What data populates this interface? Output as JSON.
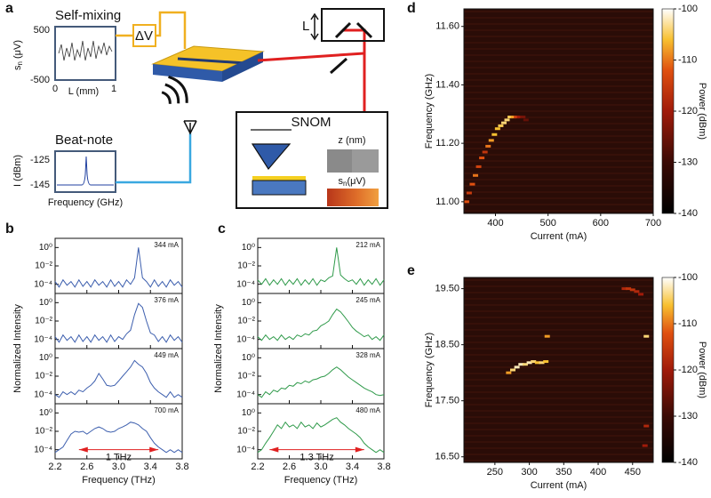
{
  "schematic": {
    "label": "a",
    "self_mixing": {
      "title": "Self-mixing",
      "ylabel": {
        "base": "s",
        "sub": "n",
        "rest": " (μV)"
      },
      "yticks": [
        "500",
        "-500"
      ],
      "xticks": [
        "0",
        "1"
      ],
      "xlabel": "L (mm)"
    },
    "bias": "ΔV",
    "mirror": "L",
    "snom": {
      "title": "SNOM",
      "topo": "z (nm)",
      "signal": {
        "base": "s",
        "sub": "n",
        "rest": "(μV)"
      }
    },
    "beat_note": {
      "title": "Beat-note",
      "ylabel": "I (dBm)",
      "yticks": [
        "-125",
        "-145"
      ],
      "xlabel": "Frequency (GHz)"
    }
  },
  "chart_data": [
    {
      "type": "spectra",
      "label": "b",
      "xlabel": "Frequency (THz)",
      "ylabel": "Normalized Intensity",
      "xlim": [
        2.2,
        3.8
      ],
      "xticks": [
        2.2,
        2.6,
        {
          "value": 3,
          "label": "3.0"
        },
        3.4,
        3.8
      ],
      "ylim": [
        1e-05,
        10
      ],
      "log_y": true,
      "yticks": [
        {
          "value": 1,
          "label": "10⁰"
        },
        {
          "value": 0.01,
          "label": "10⁻²"
        },
        {
          "value": 0.0001,
          "label": "10⁻⁴"
        }
      ],
      "color": "#3d5fae",
      "x": [
        2.2,
        2.25,
        2.3,
        2.35,
        2.4,
        2.45,
        2.5,
        2.55,
        2.6,
        2.65,
        2.7,
        2.75,
        2.8,
        2.85,
        2.9,
        2.95,
        3,
        3.05,
        3.1,
        3.15,
        3.2,
        3.25,
        3.3,
        3.35,
        3.4,
        3.45,
        3.5,
        3.55,
        3.6,
        3.65,
        3.7,
        3.75,
        3.8
      ],
      "series": [
        {
          "name": "344 mA",
          "values": [
            0.0002,
            5e-05,
            0.0003,
            8e-05,
            0.0002,
            5e-05,
            0.0003,
            6e-05,
            0.0002,
            5e-05,
            0.0003,
            8e-05,
            0.0002,
            5e-05,
            0.0003,
            6e-05,
            0.0002,
            5e-05,
            0.0003,
            0.0001,
            0.0005,
            1,
            0.0005,
            0.0002,
            5e-05,
            0.0003,
            6e-05,
            0.0002,
            5e-05,
            0.0003,
            8e-05,
            0.0002,
            5e-05
          ]
        },
        {
          "name": "376 mA",
          "values": [
            0.0002,
            5e-05,
            0.0003,
            8e-05,
            0.0002,
            5e-05,
            0.0003,
            6e-05,
            0.0002,
            5e-05,
            0.0003,
            8e-05,
            0.0002,
            5e-05,
            0.0003,
            6e-05,
            0.0002,
            0.0001,
            0.0004,
            0.001,
            0.05,
            0.8,
            0.3,
            0.01,
            0.0005,
            0.0003,
            6e-05,
            0.0002,
            5e-05,
            0.0003,
            8e-05,
            0.0002,
            5e-05
          ]
        },
        {
          "name": "449 mA",
          "values": [
            0.0001,
            5e-05,
            0.0002,
            0.0001,
            0.0002,
            0.0001,
            0.0003,
            0.0002,
            0.0005,
            0.001,
            0.003,
            0.02,
            0.005,
            0.001,
            0.0008,
            0.001,
            0.003,
            0.01,
            0.03,
            0.1,
            0.5,
            0.2,
            0.1,
            0.02,
            0.002,
            0.0005,
            0.0002,
            0.0001,
            5e-05,
            0.0002,
            5e-05,
            0.0001,
            5e-05
          ]
        },
        {
          "name": "700 mA",
          "values": [
            5e-05,
            0.0001,
            0.0002,
            0.001,
            0.005,
            0.01,
            0.008,
            0.01,
            0.005,
            0.01,
            0.02,
            0.03,
            0.02,
            0.01,
            0.008,
            0.01,
            0.02,
            0.03,
            0.05,
            0.1,
            0.08,
            0.05,
            0.02,
            0.01,
            0.002,
            0.0005,
            0.0002,
            0.0001,
            5e-05,
            0.0001,
            5e-05,
            0.0001,
            5e-05
          ]
        }
      ],
      "annotation": {
        "text": "1 THz",
        "span": [
          2.5,
          3.5
        ],
        "at": 0.0001
      }
    },
    {
      "type": "spectra",
      "label": "c",
      "xlabel": "Frequency (THz)",
      "ylabel": "Normalized Intensity",
      "xlim": [
        2.2,
        3.8
      ],
      "xticks": [
        2.2,
        2.6,
        {
          "value": 3,
          "label": "3.0"
        },
        3.4,
        3.8
      ],
      "ylim": [
        1e-05,
        10
      ],
      "log_y": true,
      "yticks": [
        {
          "value": 1,
          "label": "10⁰"
        },
        {
          "value": 0.01,
          "label": "10⁻²"
        },
        {
          "value": 0.0001,
          "label": "10⁻⁴"
        }
      ],
      "color": "#2f9a4a",
      "x": [
        2.2,
        2.25,
        2.3,
        2.35,
        2.4,
        2.45,
        2.5,
        2.55,
        2.6,
        2.65,
        2.7,
        2.75,
        2.8,
        2.85,
        2.9,
        2.95,
        3,
        3.05,
        3.1,
        3.15,
        3.2,
        3.25,
        3.3,
        3.35,
        3.4,
        3.45,
        3.5,
        3.55,
        3.6,
        3.65,
        3.7,
        3.75,
        3.8
      ],
      "series": [
        {
          "name": "212 mA",
          "values": [
            0.0003,
            0.0001,
            0.0004,
            8e-05,
            0.0003,
            0.0001,
            0.0004,
            8e-05,
            0.0003,
            0.0001,
            0.0004,
            8e-05,
            0.0003,
            0.0001,
            0.0004,
            8e-05,
            0.0003,
            0.0002,
            0.0005,
            0.0008,
            1,
            0.001,
            0.0004,
            0.0002,
            0.0003,
            0.0001,
            0.0004,
            8e-05,
            0.0003,
            0.0001,
            0.0004,
            8e-05,
            0.0003
          ]
        },
        {
          "name": "245 mA",
          "values": [
            0.0002,
            8e-05,
            0.0003,
            0.0001,
            0.0002,
            8e-05,
            0.0003,
            0.0001,
            0.0002,
            0.0001,
            0.0003,
            0.0002,
            0.0004,
            0.0003,
            0.0008,
            0.001,
            0.003,
            0.005,
            0.01,
            0.05,
            0.2,
            0.1,
            0.03,
            0.008,
            0.002,
            0.0008,
            0.0004,
            0.0002,
            0.0003,
            0.0001,
            0.0002,
            8e-05,
            0.0003
          ]
        },
        {
          "name": "328 mA",
          "values": [
            0.0001,
            5e-05,
            0.0002,
            0.0001,
            0.0003,
            0.0002,
            0.0005,
            0.0004,
            0.001,
            0.0008,
            0.002,
            0.0015,
            0.003,
            0.002,
            0.004,
            0.005,
            0.008,
            0.01,
            0.02,
            0.05,
            0.1,
            0.05,
            0.02,
            0.008,
            0.004,
            0.002,
            0.001,
            0.0005,
            0.0003,
            0.0002,
            0.0001,
            8e-05,
            0.0001
          ]
        },
        {
          "name": "480 mA",
          "values": [
            5e-05,
            0.0001,
            0.0005,
            0.002,
            0.01,
            0.05,
            0.02,
            0.1,
            0.03,
            0.05,
            0.02,
            0.1,
            0.03,
            0.05,
            0.02,
            0.08,
            0.03,
            0.05,
            0.1,
            0.2,
            0.3,
            0.1,
            0.05,
            0.02,
            0.01,
            0.005,
            0.002,
            0.0005,
            0.0002,
            0.0001,
            5e-05,
            0.0001,
            5e-05
          ]
        }
      ],
      "annotation": {
        "text": "1.3 THz",
        "span": [
          2.35,
          3.55
        ],
        "at": 0.0001
      }
    },
    {
      "type": "heatmap",
      "label": "d",
      "xlabel": "Current (mA)",
      "ylabel": "Frequency (GHz)",
      "xlim": [
        340,
        700
      ],
      "xticks": [
        400,
        500,
        600,
        700
      ],
      "ylim": [
        10.96,
        11.66
      ],
      "yticks": [
        {
          "value": 11,
          "label": "11.00"
        },
        {
          "value": 11.2,
          "label": "11.20"
        },
        {
          "value": 11.4,
          "label": "11.40"
        },
        {
          "value": 11.6,
          "label": "11.60"
        }
      ],
      "colorbar": {
        "label": "Power (dBm)",
        "lim": [
          -140,
          -100
        ],
        "ticks": [
          -100,
          -110,
          -120,
          -130,
          -140
        ]
      },
      "points": {
        "x": [
          345,
          350,
          356,
          362,
          368,
          374,
          380,
          386,
          392,
          398,
          404,
          410,
          416,
          422,
          428,
          434,
          440,
          446,
          452,
          458
        ],
        "y": [
          11.0,
          11.03,
          11.06,
          11.09,
          11.12,
          11.15,
          11.17,
          11.19,
          11.21,
          11.23,
          11.25,
          11.26,
          11.27,
          11.28,
          11.29,
          11.29,
          11.29,
          11.29,
          11.29,
          11.28
        ],
        "values": [
          -112,
          -115,
          -112,
          -110,
          -114,
          -112,
          -116,
          -110,
          -108,
          -106,
          -106,
          -105,
          -104,
          -104,
          -105,
          -108,
          -115,
          -120,
          -124,
          -126
        ]
      }
    },
    {
      "type": "heatmap",
      "label": "e",
      "xlabel": "Current (mA)",
      "ylabel": "Frequency (GHz)",
      "xlim": [
        205,
        480
      ],
      "xticks": [
        250,
        300,
        350,
        400,
        450
      ],
      "ylim": [
        16.4,
        19.7
      ],
      "yticks": [
        {
          "value": 16.5,
          "label": "16.50"
        },
        {
          "value": 17.5,
          "label": "17.50"
        },
        {
          "value": 18.5,
          "label": "18.50"
        },
        {
          "value": 19.5,
          "label": "19.50"
        }
      ],
      "colorbar": {
        "label": "Power (dBm)",
        "lim": [
          -140,
          -100
        ],
        "ticks": [
          -100,
          -110,
          -120,
          -130,
          -140
        ]
      },
      "points": {
        "x": [
          270,
          276,
          282,
          288,
          294,
          300,
          306,
          312,
          318,
          324,
          326,
          438,
          444,
          450,
          456,
          462,
          470,
          470,
          468
        ],
        "y": [
          18.0,
          18.05,
          18.1,
          18.15,
          18.15,
          18.18,
          18.2,
          18.18,
          18.18,
          18.2,
          18.65,
          19.5,
          19.5,
          19.48,
          19.45,
          19.4,
          18.65,
          17.05,
          16.7
        ],
        "values": [
          -108,
          -104,
          -102,
          -102,
          -104,
          -102,
          -104,
          -106,
          -104,
          -106,
          -108,
          -118,
          -116,
          -116,
          -118,
          -120,
          -104,
          -118,
          -120
        ]
      }
    }
  ]
}
